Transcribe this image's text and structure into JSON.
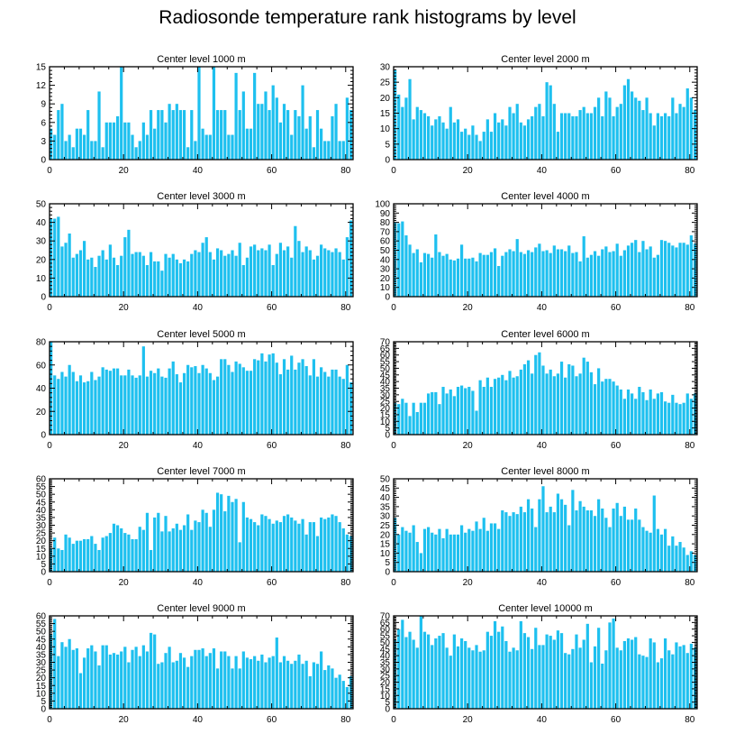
{
  "title": "Radiosonde temperature rank histograms by level",
  "bar_color": "#1ec0ef",
  "chart_data": [
    {
      "type": "bar",
      "title": "Center level 1000 m",
      "xlim": [
        0,
        82
      ],
      "ylim": [
        0,
        15
      ],
      "xticks": [
        0,
        20,
        40,
        60,
        80
      ],
      "yticks": [
        0,
        3,
        6,
        9,
        12,
        15
      ],
      "values": [
        5,
        4,
        8,
        9,
        3,
        4,
        2,
        5,
        5,
        4,
        8,
        3,
        3,
        11,
        2,
        6,
        6,
        6,
        7,
        15,
        6,
        6,
        4,
        2,
        3,
        6,
        4,
        8,
        5,
        8,
        8,
        6,
        9,
        8,
        9,
        8,
        8,
        2,
        8,
        3,
        15,
        5,
        4,
        4,
        15,
        8,
        8,
        8,
        4,
        4,
        14,
        8,
        11,
        5,
        5,
        14,
        9,
        9,
        11,
        8,
        12,
        10,
        6,
        9,
        8,
        4,
        8,
        7,
        12,
        5,
        7,
        2,
        8,
        5,
        3,
        3,
        7,
        9,
        3,
        3,
        10,
        8
      ]
    },
    {
      "type": "bar",
      "title": "Center level 2000 m",
      "xlim": [
        0,
        82
      ],
      "ylim": [
        0,
        30
      ],
      "xticks": [
        0,
        20,
        40,
        60,
        80
      ],
      "yticks": [
        0,
        5,
        10,
        15,
        20,
        25,
        30
      ],
      "values": [
        29,
        21,
        17,
        20,
        26,
        13,
        17,
        16,
        15,
        14,
        11,
        13,
        14,
        12,
        10,
        17,
        12,
        13,
        9,
        10,
        8,
        11,
        8,
        6,
        9,
        13,
        9,
        15,
        12,
        13,
        11,
        17,
        15,
        18,
        12,
        11,
        13,
        14,
        17,
        18,
        14,
        25,
        24,
        18,
        9,
        15,
        15,
        15,
        14,
        14,
        16,
        17,
        15,
        15,
        17,
        20,
        14,
        22,
        20,
        14,
        17,
        18,
        24,
        26,
        22,
        20,
        19,
        16,
        20,
        15,
        11,
        15,
        14,
        15,
        14,
        20,
        15,
        18,
        17,
        23,
        20,
        16
      ]
    },
    {
      "type": "bar",
      "title": "Center level 3000 m",
      "xlim": [
        0,
        82
      ],
      "ylim": [
        0,
        50
      ],
      "xticks": [
        0,
        20,
        40,
        60,
        80
      ],
      "yticks": [
        0,
        10,
        20,
        30,
        40,
        50
      ],
      "values": [
        42,
        42,
        43,
        27,
        29,
        34,
        21,
        23,
        25,
        30,
        20,
        21,
        16,
        22,
        25,
        20,
        28,
        21,
        17,
        22,
        32,
        36,
        23,
        24,
        24,
        22,
        17,
        24,
        19,
        19,
        14,
        23,
        21,
        23,
        20,
        18,
        20,
        19,
        23,
        25,
        24,
        29,
        32,
        24,
        20,
        26,
        25,
        22,
        23,
        25,
        22,
        29,
        17,
        21,
        27,
        28,
        25,
        26,
        25,
        28,
        17,
        23,
        29,
        25,
        27,
        21,
        38,
        30,
        24,
        27,
        25,
        20,
        22,
        28,
        26,
        25,
        24,
        26,
        24,
        20,
        32,
        41
      ]
    },
    {
      "type": "bar",
      "title": "Center level 4000 m",
      "xlim": [
        0,
        82
      ],
      "ylim": [
        0,
        100
      ],
      "xticks": [
        0,
        20,
        40,
        60,
        80
      ],
      "yticks": [
        0,
        10,
        20,
        30,
        40,
        50,
        60,
        70,
        80,
        90,
        100
      ],
      "values": [
        80,
        79,
        81,
        66,
        56,
        47,
        51,
        37,
        47,
        46,
        42,
        67,
        48,
        44,
        46,
        40,
        39,
        41,
        56,
        41,
        41,
        42,
        38,
        47,
        45,
        45,
        48,
        52,
        33,
        44,
        48,
        51,
        49,
        62,
        48,
        46,
        50,
        48,
        53,
        57,
        49,
        50,
        47,
        55,
        51,
        51,
        49,
        55,
        47,
        48,
        38,
        65,
        42,
        45,
        49,
        44,
        51,
        54,
        48,
        49,
        57,
        44,
        50,
        55,
        58,
        61,
        48,
        60,
        51,
        54,
        42,
        45,
        61,
        60,
        58,
        55,
        53,
        58,
        58,
        56,
        66,
        57
      ]
    },
    {
      "type": "bar",
      "title": "Center level 5000 m",
      "xlim": [
        0,
        82
      ],
      "ylim": [
        0,
        80
      ],
      "xticks": [
        0,
        20,
        40,
        60,
        80
      ],
      "yticks": [
        0,
        20,
        40,
        60,
        80
      ],
      "values": [
        80,
        51,
        48,
        54,
        50,
        60,
        54,
        46,
        51,
        45,
        46,
        54,
        47,
        50,
        58,
        56,
        55,
        57,
        57,
        51,
        51,
        56,
        51,
        49,
        51,
        76,
        50,
        55,
        53,
        57,
        50,
        49,
        57,
        63,
        52,
        45,
        53,
        60,
        58,
        59,
        53,
        60,
        57,
        53,
        47,
        50,
        65,
        65,
        60,
        54,
        63,
        61,
        58,
        55,
        55,
        65,
        64,
        70,
        63,
        69,
        70,
        62,
        52,
        65,
        56,
        68,
        56,
        62,
        65,
        59,
        51,
        65,
        50,
        58,
        54,
        50,
        56,
        56,
        50,
        48,
        60,
        45
      ]
    },
    {
      "type": "bar",
      "title": "Center level 6000 m",
      "xlim": [
        0,
        82
      ],
      "ylim": [
        0,
        70
      ],
      "xticks": [
        0,
        20,
        40,
        60,
        80
      ],
      "yticks": [
        0,
        5,
        10,
        15,
        20,
        25,
        30,
        35,
        40,
        45,
        50,
        55,
        60,
        65,
        70
      ],
      "values": [
        24,
        23,
        27,
        24,
        14,
        24,
        17,
        24,
        24,
        31,
        32,
        32,
        23,
        36,
        31,
        34,
        29,
        36,
        37,
        35,
        36,
        33,
        18,
        41,
        36,
        43,
        36,
        42,
        43,
        45,
        41,
        48,
        43,
        44,
        49,
        53,
        56,
        46,
        60,
        62,
        52,
        46,
        49,
        44,
        46,
        55,
        43,
        53,
        52,
        44,
        46,
        58,
        55,
        47,
        38,
        50,
        40,
        42,
        42,
        40,
        37,
        34,
        27,
        34,
        31,
        27,
        36,
        32,
        26,
        34,
        27,
        31,
        32,
        25,
        24,
        30,
        24,
        23,
        24,
        31,
        27,
        31
      ]
    },
    {
      "type": "bar",
      "title": "Center level 7000 m",
      "xlim": [
        0,
        82
      ],
      "ylim": [
        0,
        60
      ],
      "xticks": [
        0,
        20,
        40,
        60,
        80
      ],
      "yticks": [
        0,
        5,
        10,
        15,
        20,
        25,
        30,
        35,
        40,
        45,
        50,
        55,
        60
      ],
      "values": [
        15,
        22,
        15,
        14,
        24,
        22,
        18,
        20,
        20,
        21,
        21,
        23,
        18,
        14,
        22,
        23,
        25,
        31,
        30,
        28,
        25,
        24,
        21,
        21,
        29,
        27,
        38,
        14,
        35,
        38,
        26,
        36,
        26,
        28,
        31,
        27,
        30,
        37,
        27,
        33,
        32,
        40,
        38,
        29,
        40,
        51,
        50,
        39,
        49,
        45,
        47,
        19,
        45,
        35,
        34,
        32,
        30,
        37,
        36,
        34,
        31,
        33,
        32,
        36,
        37,
        35,
        33,
        31,
        34,
        24,
        32,
        32,
        23,
        35,
        34,
        35,
        37,
        36,
        32,
        28,
        24,
        23
      ]
    },
    {
      "type": "bar",
      "title": "Center level 8000 m",
      "xlim": [
        0,
        82
      ],
      "ylim": [
        0,
        50
      ],
      "xticks": [
        0,
        20,
        40,
        60,
        80
      ],
      "yticks": [
        0,
        5,
        10,
        15,
        20,
        25,
        30,
        35,
        40,
        45,
        50
      ],
      "values": [
        29,
        20,
        24,
        22,
        21,
        25,
        16,
        10,
        23,
        24,
        21,
        20,
        23,
        18,
        23,
        20,
        20,
        20,
        25,
        21,
        23,
        22,
        27,
        23,
        29,
        22,
        26,
        26,
        23,
        33,
        32,
        30,
        32,
        31,
        35,
        32,
        39,
        34,
        24,
        39,
        46,
        32,
        35,
        32,
        42,
        39,
        36,
        25,
        44,
        33,
        38,
        35,
        33,
        33,
        30,
        39,
        34,
        29,
        24,
        34,
        37,
        30,
        35,
        28,
        28,
        34,
        28,
        24,
        22,
        21,
        41,
        23,
        20,
        23,
        14,
        19,
        14,
        16,
        13,
        9,
        11,
        9
      ]
    },
    {
      "type": "bar",
      "title": "Center level 9000 m",
      "xlim": [
        0,
        82
      ],
      "ylim": [
        0,
        60
      ],
      "xticks": [
        0,
        20,
        40,
        60,
        80
      ],
      "yticks": [
        0,
        5,
        10,
        15,
        20,
        25,
        30,
        35,
        40,
        45,
        50,
        55,
        60
      ],
      "values": [
        48,
        58,
        34,
        43,
        40,
        45,
        38,
        39,
        23,
        33,
        39,
        41,
        37,
        28,
        41,
        41,
        35,
        36,
        35,
        37,
        40,
        30,
        38,
        40,
        34,
        41,
        37,
        49,
        48,
        29,
        30,
        36,
        40,
        30,
        31,
        36,
        33,
        27,
        34,
        38,
        38,
        39,
        34,
        36,
        39,
        26,
        37,
        37,
        34,
        26,
        34,
        26,
        37,
        33,
        32,
        34,
        31,
        35,
        30,
        33,
        34,
        46,
        30,
        34,
        31,
        29,
        31,
        35,
        29,
        31,
        21,
        30,
        29,
        37,
        25,
        28,
        26,
        20,
        22,
        18,
        14,
        21
      ]
    },
    {
      "type": "bar",
      "title": "Center level 10000 m",
      "xlim": [
        0,
        82
      ],
      "ylim": [
        0,
        70
      ],
      "xticks": [
        0,
        20,
        40,
        60,
        80
      ],
      "yticks": [
        0,
        5,
        10,
        15,
        20,
        25,
        30,
        35,
        40,
        45,
        50,
        55,
        60,
        65,
        70
      ],
      "values": [
        52,
        60,
        67,
        54,
        58,
        52,
        46,
        70,
        58,
        56,
        48,
        53,
        55,
        57,
        46,
        40,
        56,
        47,
        53,
        51,
        46,
        44,
        48,
        43,
        44,
        58,
        55,
        66,
        58,
        62,
        51,
        43,
        46,
        44,
        66,
        57,
        54,
        45,
        61,
        48,
        48,
        56,
        55,
        52,
        59,
        57,
        42,
        41,
        45,
        56,
        46,
        52,
        64,
        35,
        47,
        61,
        34,
        44,
        65,
        68,
        46,
        44,
        51,
        53,
        52,
        54,
        41,
        40,
        39,
        53,
        50,
        35,
        38,
        53,
        44,
        41,
        50,
        47,
        48,
        42,
        49,
        46
      ]
    }
  ]
}
